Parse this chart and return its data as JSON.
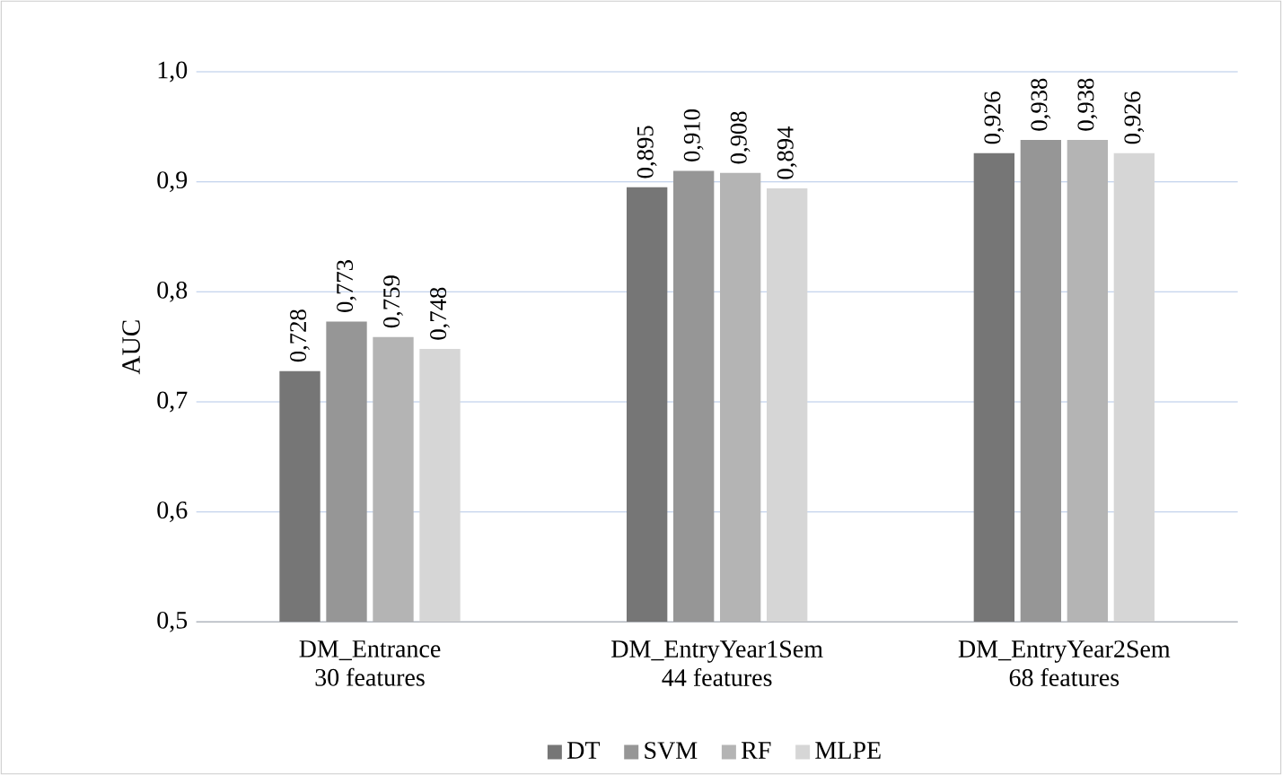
{
  "chart_data": {
    "type": "bar",
    "ylabel": "AUC",
    "categories": [
      "DM_Entrance\n30 features",
      "DM_EntryYear1Sem\n44 features",
      "DM_EntryYear2Sem\n68 features"
    ],
    "series": [
      {
        "name": "DT",
        "color": "#767676",
        "values": [
          0.728,
          0.895,
          0.926
        ],
        "value_labels": [
          "0,728",
          "0,895",
          "0,926"
        ]
      },
      {
        "name": "SVM",
        "color": "#969696",
        "values": [
          0.773,
          0.91,
          0.938
        ],
        "value_labels": [
          "0,773",
          "0,910",
          "0,938"
        ]
      },
      {
        "name": "RF",
        "color": "#b4b4b4",
        "values": [
          0.759,
          0.908,
          0.938
        ],
        "value_labels": [
          "0,759",
          "0,908",
          "0,938"
        ]
      },
      {
        "name": "MLPE",
        "color": "#d6d6d6",
        "values": [
          0.748,
          0.894,
          0.926
        ],
        "value_labels": [
          "0,748",
          "0,894",
          "0,926"
        ]
      }
    ],
    "ylim": [
      0.5,
      1.0
    ],
    "yticks": [
      {
        "value": 0.5,
        "label": "0,5"
      },
      {
        "value": 0.6,
        "label": "0,6"
      },
      {
        "value": 0.7,
        "label": "0,7"
      },
      {
        "value": 0.8,
        "label": "0,8"
      },
      {
        "value": 0.9,
        "label": "0,9"
      },
      {
        "value": 1.0,
        "label": "1,0"
      }
    ],
    "grid": "y",
    "legend": "bottom"
  }
}
